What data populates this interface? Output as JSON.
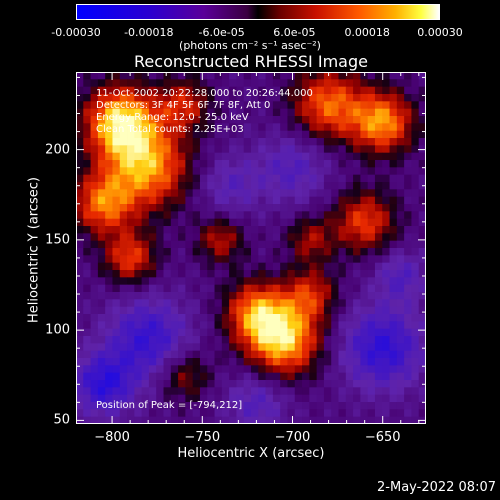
{
  "colorbar": {
    "ticks": [
      "-0.00030",
      "-0.00018",
      "-6.0e-05",
      "6.0e-05",
      "0.00018",
      "0.00030"
    ],
    "tick_values": [
      -0.0003,
      -0.00018,
      -6e-05,
      6e-05,
      0.00018,
      0.0003
    ],
    "range": [
      -0.0003,
      0.0003
    ],
    "units": "(photons cm⁻² s⁻¹ asec⁻²)",
    "colors": [
      "#0000ff",
      "#5a0099",
      "#000000",
      "#c81000",
      "#ffb000",
      "#ffffff"
    ]
  },
  "chart_data": {
    "type": "heatmap",
    "title": "Reconstructed RHESSI Image",
    "xlabel": "Heliocentric X (arcsec)",
    "ylabel": "Heliocentric Y (arcsec)",
    "xlim": [
      -820,
      -626
    ],
    "ylim": [
      48,
      243
    ],
    "x_ticks": [
      -800,
      -750,
      -700,
      -650
    ],
    "y_ticks": [
      50,
      100,
      150,
      200
    ],
    "x_tick_labels": [
      "−800",
      "−750",
      "−700",
      "−650"
    ],
    "y_tick_labels": [
      "50",
      "100",
      "150",
      "200"
    ],
    "peak": [
      -794,
      212
    ],
    "annotations": [
      "11-Oct-2002 20:22:28.000 to 20:26:44.000",
      "Detectors: 3F 4F 5F 6F 7F 8F, Att 0",
      "Energy Range: 12.0 - 25.0 keV",
      "Clean   Total counts: 2.25E+03"
    ],
    "peak_label": "Position of Peak = [-794,212]",
    "blobs": [
      {
        "x": -795,
        "y": 215,
        "a": 1.0,
        "s": 14
      },
      {
        "x": -780,
        "y": 190,
        "a": 0.8,
        "s": 16
      },
      {
        "x": -805,
        "y": 170,
        "a": 0.7,
        "s": 12
      },
      {
        "x": -790,
        "y": 140,
        "a": 0.6,
        "s": 10
      },
      {
        "x": -760,
        "y": 225,
        "a": 0.5,
        "s": 10
      },
      {
        "x": -705,
        "y": 95,
        "a": 0.95,
        "s": 14
      },
      {
        "x": -720,
        "y": 110,
        "a": 0.7,
        "s": 12
      },
      {
        "x": -690,
        "y": 120,
        "a": 0.5,
        "s": 10
      },
      {
        "x": -680,
        "y": 225,
        "a": 0.7,
        "s": 14
      },
      {
        "x": -650,
        "y": 215,
        "a": 0.8,
        "s": 12
      },
      {
        "x": -660,
        "y": 160,
        "a": 0.6,
        "s": 12
      },
      {
        "x": -690,
        "y": 150,
        "a": 0.4,
        "s": 9
      },
      {
        "x": -740,
        "y": 150,
        "a": 0.45,
        "s": 9
      },
      {
        "x": -760,
        "y": 75,
        "a": 0.4,
        "s": 10
      },
      {
        "x": -650,
        "y": 90,
        "a": -0.6,
        "s": 16
      },
      {
        "x": -780,
        "y": 95,
        "a": -0.55,
        "s": 16
      },
      {
        "x": -805,
        "y": 70,
        "a": -0.6,
        "s": 12
      },
      {
        "x": -700,
        "y": 190,
        "a": -0.35,
        "s": 14
      },
      {
        "x": -735,
        "y": 180,
        "a": -0.3,
        "s": 12
      },
      {
        "x": -640,
        "y": 130,
        "a": -0.35,
        "s": 10
      },
      {
        "x": -720,
        "y": 60,
        "a": -0.35,
        "s": 12
      }
    ]
  },
  "datestamp": "2-May-2022 08:07"
}
